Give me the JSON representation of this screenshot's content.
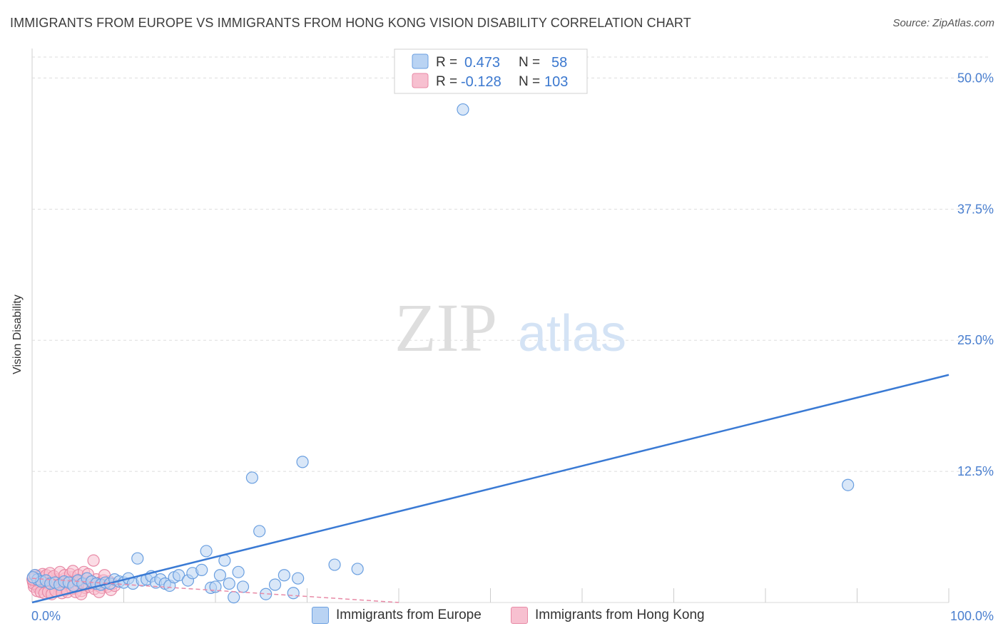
{
  "header": {
    "title": "IMMIGRANTS FROM EUROPE VS IMMIGRANTS FROM HONG KONG VISION DISABILITY CORRELATION CHART",
    "source": "Source: ZipAtlas.com"
  },
  "watermark": {
    "zip": "ZIP",
    "atlas": "atlas"
  },
  "legend": {
    "rows": [
      {
        "r_label": "R =",
        "r_value": "0.473",
        "n_label": "N =",
        "n_value": "58",
        "color": "#a8c8f0",
        "stroke": "#6a9fe0"
      },
      {
        "r_label": "R =",
        "r_value": "-0.128",
        "n_label": "N =",
        "n_value": "103",
        "color": "#f7b8cb",
        "stroke": "#e88aa6"
      }
    ]
  },
  "bottom_legend": {
    "europe": "Immigrants from Europe",
    "hongkong": "Immigrants from Hong Kong"
  },
  "chart_data": {
    "type": "scatter",
    "title": "IMMIGRANTS FROM EUROPE VS IMMIGRANTS FROM HONG KONG VISION DISABILITY CORRELATION CHART",
    "ylabel": "Vision Disability",
    "xlabel": "",
    "xlim": [
      0,
      100
    ],
    "ylim": [
      0,
      52
    ],
    "x_tick_labels": [
      "0.0%",
      "100.0%"
    ],
    "y_ticks": [
      12.5,
      25.0,
      37.5,
      50.0
    ],
    "y_tick_labels": [
      "12.5%",
      "25.0%",
      "37.5%",
      "50.0%"
    ],
    "grid": true,
    "legend_position": "top-center",
    "colors": {
      "europe": "#6a9fe0",
      "europe_fill": "#b9d3f3",
      "hongkong": "#e88aa6",
      "hongkong_fill": "#f7c0d0",
      "trend_europe": "#3a7ad4",
      "trend_hongkong": "#e88aa6"
    },
    "series": [
      {
        "name": "Immigrants from Europe",
        "points": [
          [
            0.3,
            2.6
          ],
          [
            0.6,
            2.2
          ],
          [
            1.0,
            2.0
          ],
          [
            1.5,
            2.1
          ],
          [
            2.0,
            1.8
          ],
          [
            2.5,
            1.9
          ],
          [
            3.0,
            1.7
          ],
          [
            3.5,
            2.0
          ],
          [
            4.0,
            1.9
          ],
          [
            4.5,
            1.6
          ],
          [
            5.0,
            2.1
          ],
          [
            5.5,
            1.8
          ],
          [
            6.0,
            2.3
          ],
          [
            6.5,
            2.0
          ],
          [
            7.0,
            1.8
          ],
          [
            7.5,
            1.7
          ],
          [
            8.0,
            1.9
          ],
          [
            8.5,
            1.8
          ],
          [
            9.0,
            2.2
          ],
          [
            9.5,
            2.0
          ],
          [
            10.0,
            1.9
          ],
          [
            10.5,
            2.3
          ],
          [
            11.0,
            1.8
          ],
          [
            11.5,
            4.2
          ],
          [
            12.0,
            2.1
          ],
          [
            12.5,
            2.2
          ],
          [
            13.0,
            2.5
          ],
          [
            13.5,
            1.9
          ],
          [
            14.0,
            2.2
          ],
          [
            14.5,
            1.8
          ],
          [
            15.0,
            1.6
          ],
          [
            15.5,
            2.4
          ],
          [
            16.0,
            2.6
          ],
          [
            17.0,
            2.1
          ],
          [
            17.5,
            2.8
          ],
          [
            18.5,
            3.1
          ],
          [
            19.0,
            4.9
          ],
          [
            19.5,
            1.4
          ],
          [
            20.0,
            1.5
          ],
          [
            20.5,
            2.6
          ],
          [
            21.0,
            4.0
          ],
          [
            21.5,
            1.8
          ],
          [
            22.0,
            0.5
          ],
          [
            22.5,
            2.9
          ],
          [
            23.0,
            1.5
          ],
          [
            24.0,
            11.9
          ],
          [
            24.8,
            6.8
          ],
          [
            25.5,
            0.8
          ],
          [
            26.5,
            1.7
          ],
          [
            27.5,
            2.6
          ],
          [
            28.5,
            0.9
          ],
          [
            29.0,
            2.3
          ],
          [
            29.5,
            13.4
          ],
          [
            33.0,
            3.6
          ],
          [
            35.5,
            3.2
          ],
          [
            47.0,
            47.0
          ],
          [
            89.0,
            11.2
          ],
          [
            0.1,
            2.4
          ]
        ]
      },
      {
        "name": "Immigrants from Hong Kong",
        "points": [
          [
            0.1,
            2.0
          ],
          [
            0.2,
            1.5
          ],
          [
            0.3,
            2.3
          ],
          [
            0.4,
            1.8
          ],
          [
            0.5,
            1.6
          ],
          [
            0.6,
            2.1
          ],
          [
            0.7,
            1.4
          ],
          [
            0.8,
            1.9
          ],
          [
            0.9,
            2.2
          ],
          [
            1.0,
            1.7
          ],
          [
            1.1,
            1.3
          ],
          [
            1.2,
            2.0
          ],
          [
            1.3,
            1.6
          ],
          [
            1.4,
            2.4
          ],
          [
            1.5,
            1.8
          ],
          [
            1.6,
            1.5
          ],
          [
            1.7,
            2.1
          ],
          [
            1.8,
            1.2
          ],
          [
            1.9,
            1.9
          ],
          [
            2.0,
            1.7
          ],
          [
            2.1,
            2.3
          ],
          [
            2.2,
            1.4
          ],
          [
            2.3,
            1.8
          ],
          [
            2.4,
            2.0
          ],
          [
            2.5,
            1.6
          ],
          [
            2.6,
            1.3
          ],
          [
            2.7,
            2.2
          ],
          [
            2.8,
            1.9
          ],
          [
            2.9,
            1.5
          ],
          [
            3.0,
            2.1
          ],
          [
            3.1,
            1.7
          ],
          [
            3.2,
            1.4
          ],
          [
            3.3,
            2.0
          ],
          [
            3.4,
            1.8
          ],
          [
            3.5,
            1.6
          ],
          [
            3.6,
            2.3
          ],
          [
            3.7,
            1.2
          ],
          [
            3.8,
            1.9
          ],
          [
            3.9,
            1.7
          ],
          [
            4.0,
            2.1
          ],
          [
            4.1,
            1.5
          ],
          [
            4.2,
            1.8
          ],
          [
            4.3,
            2.4
          ],
          [
            4.4,
            1.3
          ],
          [
            4.5,
            2.0
          ],
          [
            4.6,
            1.6
          ],
          [
            4.7,
            1.9
          ],
          [
            4.8,
            1.4
          ],
          [
            4.9,
            2.2
          ],
          [
            5.0,
            1.7
          ],
          [
            5.1,
            1.5
          ],
          [
            5.2,
            2.0
          ],
          [
            5.3,
            1.8
          ],
          [
            5.4,
            1.1
          ],
          [
            5.5,
            2.1
          ],
          [
            5.6,
            1.6
          ],
          [
            5.7,
            1.9
          ],
          [
            5.8,
            1.4
          ],
          [
            5.9,
            2.3
          ],
          [
            6.0,
            1.7
          ],
          [
            6.2,
            1.5
          ],
          [
            6.4,
            2.0
          ],
          [
            6.6,
            1.8
          ],
          [
            6.8,
            1.3
          ],
          [
            7.0,
            2.2
          ],
          [
            7.2,
            1.6
          ],
          [
            7.4,
            1.9
          ],
          [
            7.6,
            1.4
          ],
          [
            7.8,
            2.1
          ],
          [
            8.0,
            1.7
          ],
          [
            8.2,
            1.5
          ],
          [
            8.4,
            2.0
          ],
          [
            8.6,
            1.2
          ],
          [
            8.8,
            1.8
          ],
          [
            9.0,
            1.6
          ],
          [
            0.15,
            1.8
          ],
          [
            0.35,
            2.6
          ],
          [
            0.55,
            1.1
          ],
          [
            0.75,
            2.5
          ],
          [
            0.95,
            1.0
          ],
          [
            1.15,
            2.7
          ],
          [
            1.35,
            0.9
          ],
          [
            1.55,
            2.6
          ],
          [
            1.75,
            1.0
          ],
          [
            1.95,
            2.8
          ],
          [
            2.15,
            0.8
          ],
          [
            2.35,
            2.5
          ],
          [
            2.55,
            1.1
          ],
          [
            3.05,
            2.9
          ],
          [
            3.25,
            0.9
          ],
          [
            3.55,
            2.6
          ],
          [
            3.85,
            1.0
          ],
          [
            4.15,
            2.7
          ],
          [
            4.45,
            3.0
          ],
          [
            4.75,
            1.0
          ],
          [
            5.05,
            2.6
          ],
          [
            5.35,
            0.8
          ],
          [
            5.65,
            2.9
          ],
          [
            6.1,
            2.7
          ],
          [
            6.7,
            4.0
          ],
          [
            7.3,
            1.0
          ],
          [
            7.9,
            2.6
          ],
          [
            0.05,
            2.2
          ]
        ]
      }
    ],
    "trend_lines": [
      {
        "series": "Immigrants from Europe",
        "from": [
          0,
          0.0
        ],
        "to": [
          100,
          21.7
        ]
      },
      {
        "series": "Immigrants from Hong Kong",
        "from": [
          0,
          2.3
        ],
        "to": [
          40,
          0.0
        ]
      }
    ]
  }
}
